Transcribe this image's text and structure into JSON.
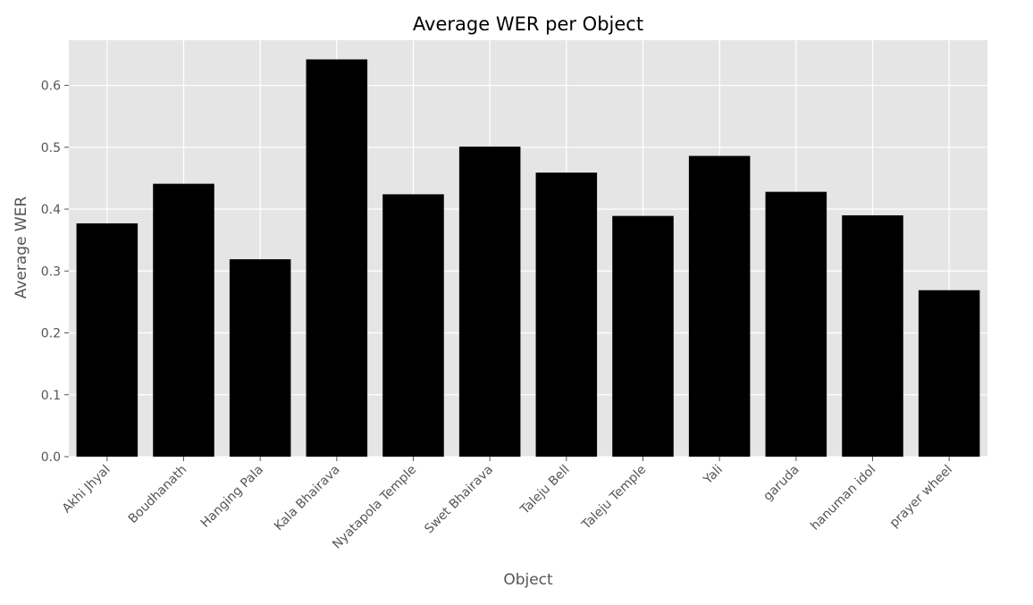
{
  "chart_data": {
    "type": "bar",
    "title": "Average WER per Object",
    "xlabel": "Object",
    "ylabel": "Average WER",
    "categories": [
      "Akhi Jhyal",
      "Boudhanath",
      "Hanging Pala",
      "Kala Bhairava",
      "Nyatapola Temple",
      "Swet Bhairava",
      "Taleju Bell",
      "Taleju Temple",
      "Yali",
      "garuda",
      "hanuman idol",
      "prayer wheel"
    ],
    "values": [
      0.377,
      0.441,
      0.319,
      0.642,
      0.424,
      0.501,
      0.459,
      0.389,
      0.486,
      0.428,
      0.39,
      0.269
    ],
    "ylim": [
      0,
      0.673
    ],
    "yticks": [
      "0.0",
      "0.1",
      "0.2",
      "0.3",
      "0.4",
      "0.5",
      "0.6"
    ],
    "grid": true,
    "colors": {
      "bar": "#000000",
      "plot_background": "#e5e5e5",
      "grid": "#ffffff"
    }
  }
}
